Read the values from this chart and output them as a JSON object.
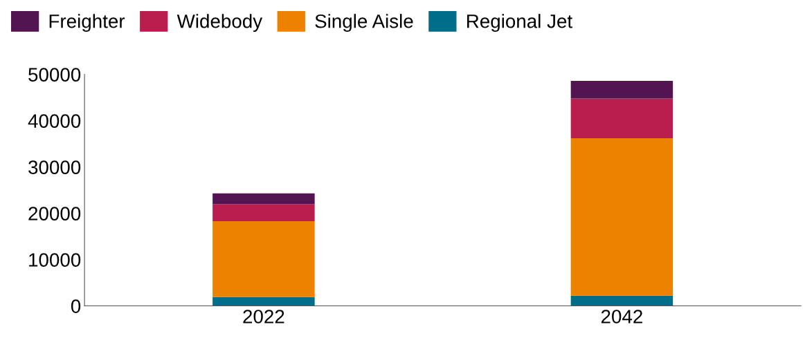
{
  "chart_data": {
    "type": "bar",
    "stacked": true,
    "categories": [
      "2022",
      "2042"
    ],
    "series": [
      {
        "name": "Regional Jet",
        "color": "#006e8a",
        "values": [
          1900,
          2200
        ]
      },
      {
        "name": "Single Aisle",
        "color": "#ed8200",
        "values": [
          16400,
          34000
        ]
      },
      {
        "name": "Widebody",
        "color": "#b91e4f",
        "values": [
          3700,
          8600
        ]
      },
      {
        "name": "Freighter",
        "color": "#521552",
        "values": [
          2300,
          3800
        ]
      }
    ],
    "ylim": [
      0,
      50000
    ],
    "yticks": [
      0,
      10000,
      20000,
      30000,
      40000,
      50000
    ],
    "grid": false,
    "legend": "top"
  }
}
